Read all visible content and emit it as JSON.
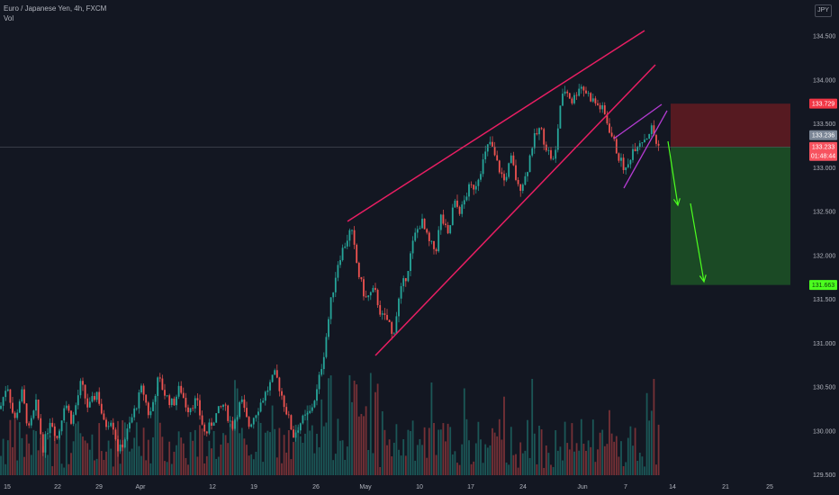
{
  "header": {
    "symbol": "Euro / Japanese Yen, 4h, FXCM",
    "indicator": "Vol",
    "currency": "JPY"
  },
  "colors": {
    "bull": "#26a69a",
    "bear": "#ef5350",
    "channel": "#e91e63",
    "wedge": "#b33bd1",
    "arrow": "#4cff1f",
    "stop_zone": "#5a1a22",
    "target_zone": "#1b4d26"
  },
  "chart_data": {
    "type": "candlestick",
    "title": "Euro / Japanese Yen, 4h, FXCM",
    "y_ticks": [
      "134.500",
      "134.000",
      "133.500",
      "133.000",
      "132.500",
      "132.000",
      "131.500",
      "131.000",
      "130.500",
      "130.000",
      "129.500"
    ],
    "x_ticks": [
      "15",
      "22",
      "29",
      "Apr",
      "12",
      "19",
      "26",
      "May",
      "10",
      "17",
      "24",
      "Jun",
      "7",
      "14",
      "21",
      "25"
    ],
    "ylim": [
      129.45,
      134.75
    ],
    "last_price": "133.233",
    "countdown": "01:48:44",
    "stop_level": "133.729",
    "entry_level": "133.236",
    "target_level": "131.663",
    "anchors": [
      [
        0,
        130.25
      ],
      [
        8,
        130.55
      ],
      [
        16,
        130.1
      ],
      [
        24,
        130.45
      ],
      [
        32,
        130.0
      ],
      [
        40,
        130.3
      ],
      [
        48,
        129.8
      ],
      [
        56,
        130.15
      ],
      [
        64,
        129.9
      ],
      [
        72,
        130.35
      ],
      [
        80,
        130.1
      ],
      [
        90,
        130.55
      ],
      [
        98,
        130.25
      ],
      [
        108,
        130.45
      ],
      [
        116,
        130.05
      ],
      [
        124,
        130.15
      ],
      [
        132,
        129.75
      ],
      [
        140,
        129.95
      ],
      [
        150,
        130.25
      ],
      [
        158,
        130.5
      ],
      [
        166,
        130.15
      ],
      [
        176,
        130.6
      ],
      [
        184,
        130.4
      ],
      [
        192,
        130.3
      ],
      [
        200,
        130.5
      ],
      [
        208,
        130.25
      ],
      [
        218,
        130.35
      ],
      [
        228,
        129.95
      ],
      [
        238,
        130.15
      ],
      [
        248,
        130.3
      ],
      [
        258,
        130.05
      ],
      [
        268,
        130.35
      ],
      [
        276,
        130.05
      ],
      [
        286,
        130.25
      ],
      [
        296,
        130.45
      ],
      [
        306,
        130.65
      ],
      [
        316,
        130.3
      ],
      [
        326,
        129.95
      ],
      [
        334,
        130.1
      ],
      [
        344,
        130.2
      ],
      [
        352,
        130.45
      ],
      [
        360,
        130.9
      ],
      [
        368,
        131.5
      ],
      [
        376,
        131.95
      ],
      [
        384,
        132.15
      ],
      [
        390,
        132.3
      ],
      [
        398,
        131.8
      ],
      [
        406,
        131.5
      ],
      [
        416,
        131.6
      ],
      [
        424,
        131.3
      ],
      [
        432,
        131.25
      ],
      [
        436,
        131.05
      ],
      [
        444,
        131.55
      ],
      [
        452,
        131.8
      ],
      [
        460,
        132.2
      ],
      [
        468,
        132.4
      ],
      [
        476,
        132.15
      ],
      [
        484,
        132.05
      ],
      [
        490,
        132.45
      ],
      [
        498,
        132.2
      ],
      [
        504,
        132.6
      ],
      [
        512,
        132.5
      ],
      [
        520,
        132.75
      ],
      [
        528,
        132.8
      ],
      [
        536,
        133.05
      ],
      [
        544,
        133.3
      ],
      [
        552,
        133.05
      ],
      [
        560,
        132.85
      ],
      [
        568,
        133.1
      ],
      [
        576,
        132.75
      ],
      [
        584,
        132.9
      ],
      [
        592,
        133.3
      ],
      [
        600,
        133.45
      ],
      [
        608,
        133.2
      ],
      [
        616,
        133.05
      ],
      [
        622,
        133.7
      ],
      [
        628,
        133.9
      ],
      [
        636,
        133.75
      ],
      [
        644,
        133.95
      ],
      [
        652,
        133.85
      ],
      [
        660,
        133.75
      ],
      [
        670,
        133.65
      ],
      [
        680,
        133.35
      ],
      [
        688,
        133.1
      ],
      [
        696,
        132.95
      ],
      [
        702,
        133.2
      ],
      [
        710,
        133.3
      ],
      [
        718,
        133.35
      ],
      [
        724,
        133.45
      ],
      [
        730,
        133.25
      ],
      [
        734,
        133.23
      ]
    ]
  }
}
